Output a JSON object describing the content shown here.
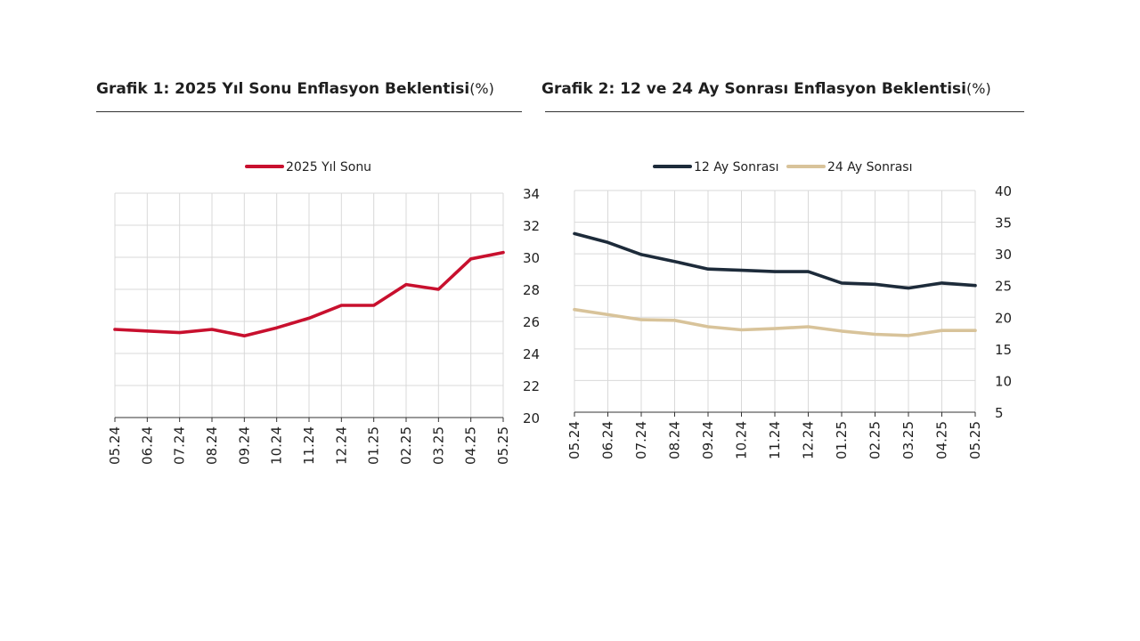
{
  "chart_data": [
    {
      "type": "line",
      "title": "Grafik 1: 2025 Yıl Sonu Enflasyon Beklentisi",
      "title_unit": "(%)",
      "categories": [
        "05.24",
        "06.24",
        "07.24",
        "08.24",
        "09.24",
        "10.24",
        "11.24",
        "12.24",
        "01.25",
        "02.25",
        "03.25",
        "04.25",
        "05.25"
      ],
      "series": [
        {
          "name": "2025 Yıl Sonu",
          "color": "#c8102e",
          "values": [
            25.5,
            25.4,
            25.3,
            25.5,
            25.1,
            25.6,
            26.2,
            27.0,
            27.0,
            28.3,
            28.0,
            29.9,
            30.3
          ]
        }
      ],
      "ylim": [
        20,
        34
      ],
      "yticks": [
        "20",
        "22",
        "24",
        "26",
        "28",
        "30",
        "32",
        "34"
      ],
      "yaxis_side": "right",
      "grid": true,
      "legend_position": "top-center"
    },
    {
      "type": "line",
      "title": "Grafik 2: 12 ve 24 Ay Sonrası Enflasyon Beklentisi",
      "title_unit": "(%)",
      "categories": [
        "05.24",
        "06.24",
        "07.24",
        "08.24",
        "09.24",
        "10.24",
        "11.24",
        "12.24",
        "01.25",
        "02.25",
        "03.25",
        "04.25",
        "05.25"
      ],
      "series": [
        {
          "name": "12 Ay Sonrası",
          "color": "#1d2b3a",
          "values": [
            33.2,
            31.8,
            29.9,
            28.8,
            27.6,
            27.4,
            27.2,
            27.2,
            25.4,
            25.2,
            24.6,
            25.4,
            25.0
          ]
        },
        {
          "name": "24 Ay Sonrası",
          "color": "#d8c39a",
          "values": [
            21.2,
            20.4,
            19.6,
            19.5,
            18.5,
            18.0,
            18.2,
            18.5,
            17.8,
            17.3,
            17.1,
            17.9,
            17.9
          ]
        }
      ],
      "ylim": [
        5,
        40
      ],
      "yticks": [
        "5",
        "10",
        "15",
        "20",
        "25",
        "30",
        "35",
        "40"
      ],
      "yaxis_side": "right",
      "grid": true,
      "legend_position": "top-center"
    }
  ]
}
